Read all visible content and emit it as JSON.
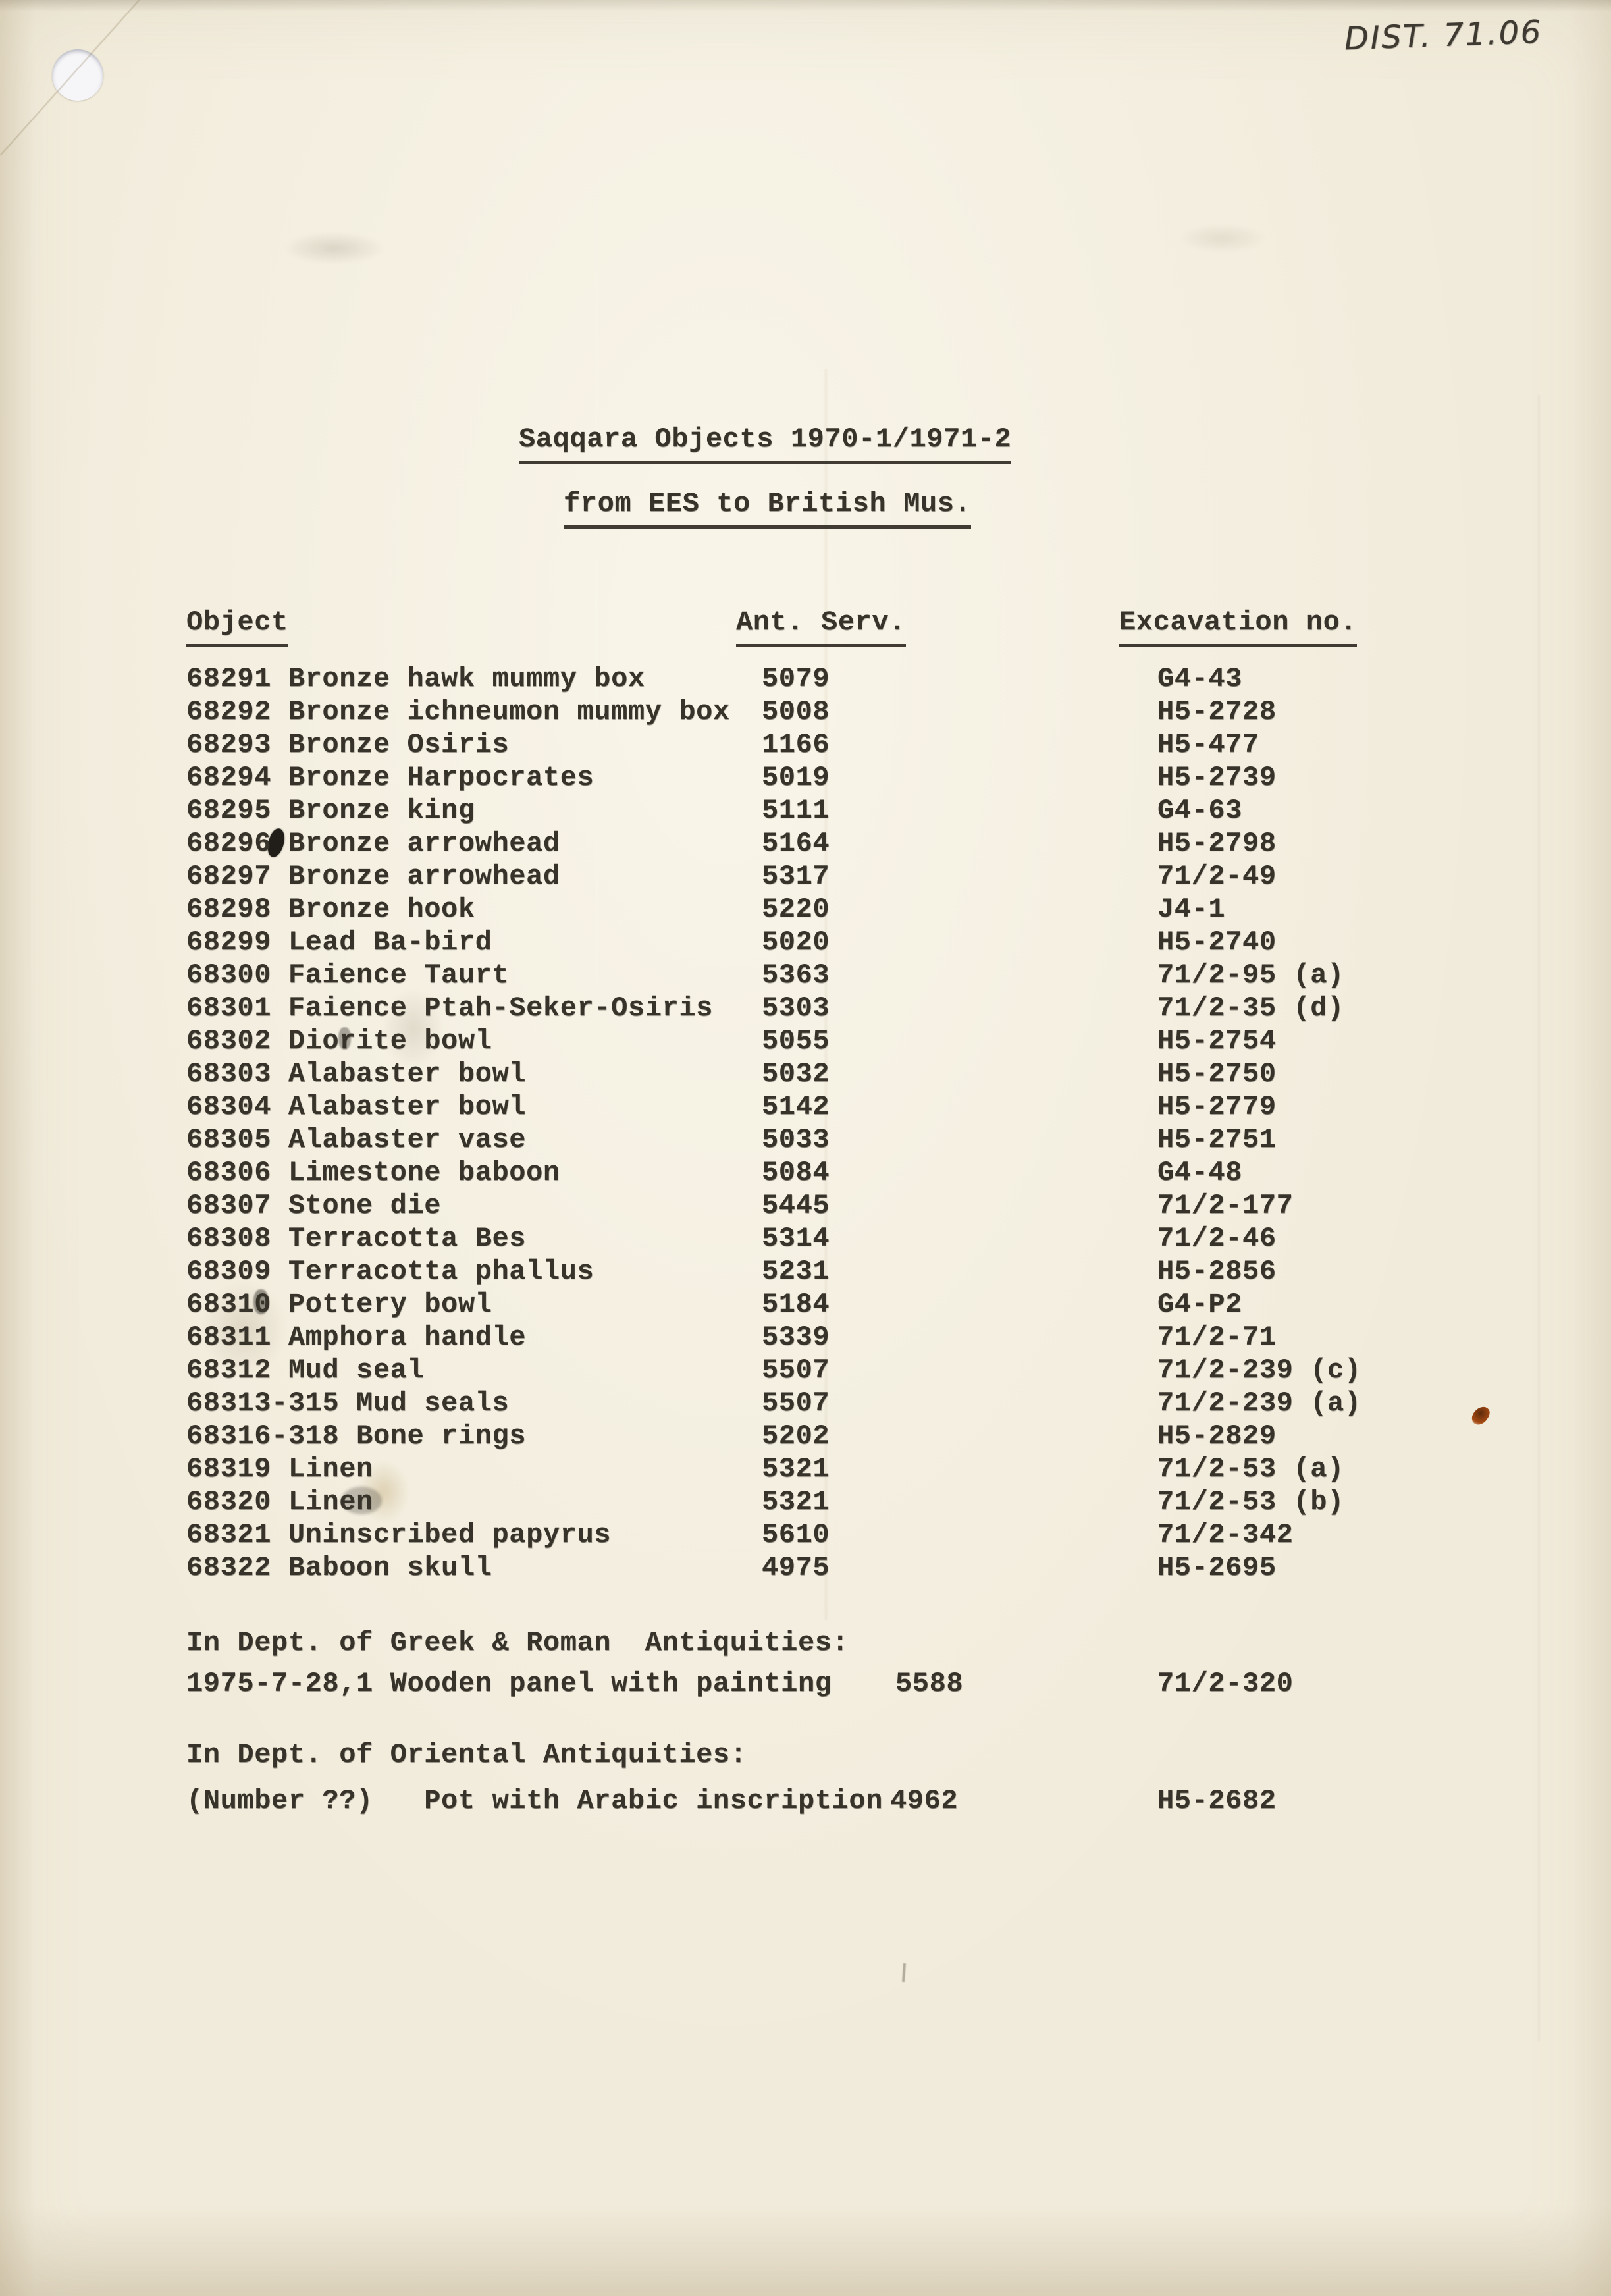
{
  "page": {
    "annotation": "DIST. 71.06"
  },
  "title": {
    "line1": "Saqqara Objects 1970-1/1971-2",
    "line2": "from EES to British Mus."
  },
  "headers": {
    "object": "Object",
    "ant_serv": "Ant. Serv.",
    "excavation": "Excavation no."
  },
  "rows": [
    {
      "object": "68291 Bronze hawk mummy box",
      "serv": "5079",
      "exc": "G4-43"
    },
    {
      "object": "68292 Bronze ichneumon mummy box",
      "serv": "5008",
      "exc": "H5-2728"
    },
    {
      "object": "68293 Bronze Osiris",
      "serv": "1166",
      "exc": "H5-477"
    },
    {
      "object": "68294 Bronze Harpocrates",
      "serv": "5019",
      "exc": "H5-2739"
    },
    {
      "object": "68295 Bronze king",
      "serv": "5111",
      "exc": "G4-63"
    },
    {
      "object": "68296 Bronze arrowhead",
      "serv": "5164",
      "exc": "H5-2798"
    },
    {
      "object": "68297 Bronze arrowhead",
      "serv": "5317",
      "exc": "71/2-49"
    },
    {
      "object": "68298 Bronze hook",
      "serv": "5220",
      "exc": "J4-1"
    },
    {
      "object": "68299 Lead Ba-bird",
      "serv": "5020",
      "exc": "H5-2740"
    },
    {
      "object": "68300 Faience Taurt",
      "serv": "5363",
      "exc": "71/2-95 (a)"
    },
    {
      "object": "68301 Faience Ptah-Seker-Osiris",
      "serv": "5303",
      "exc": "71/2-35 (d)"
    },
    {
      "object": "68302 Diorite bowl",
      "serv": "5055",
      "exc": "H5-2754"
    },
    {
      "object": "68303 Alabaster bowl",
      "serv": "5032",
      "exc": "H5-2750"
    },
    {
      "object": "68304 Alabaster bowl",
      "serv": "5142",
      "exc": "H5-2779"
    },
    {
      "object": "68305 Alabaster vase",
      "serv": "5033",
      "exc": "H5-2751"
    },
    {
      "object": "68306 Limestone baboon",
      "serv": "5084",
      "exc": "G4-48"
    },
    {
      "object": "68307 Stone die",
      "serv": "5445",
      "exc": "71/2-177"
    },
    {
      "object": "68308 Terracotta Bes",
      "serv": "5314",
      "exc": "71/2-46"
    },
    {
      "object": "68309 Terracotta phallus",
      "serv": "5231",
      "exc": "H5-2856"
    },
    {
      "object": "68310 Pottery bowl",
      "serv": "5184",
      "exc": "G4-P2"
    },
    {
      "object": "68311 Amphora handle",
      "serv": "5339",
      "exc": "71/2-71"
    },
    {
      "object": "68312 Mud seal",
      "serv": "5507",
      "exc": "71/2-239 (c)"
    },
    {
      "object": "68313-315 Mud seals",
      "serv": "5507",
      "exc": "71/2-239 (a)"
    },
    {
      "object": "68316-318 Bone rings",
      "serv": "5202",
      "exc": "H5-2829"
    },
    {
      "object": "68319 Linen",
      "serv": "5321",
      "exc": "71/2-53 (a)"
    },
    {
      "object": "68320 Linen",
      "serv": "5321",
      "exc": "71/2-53 (b)"
    },
    {
      "object": "68321 Uninscribed papyrus",
      "serv": "5610",
      "exc": "71/2-342"
    },
    {
      "object": "68322 Baboon skull",
      "serv": "4975",
      "exc": "H5-2695"
    }
  ],
  "sections": [
    {
      "heading": "In Dept. of Greek & Roman  Antiquities:",
      "entry_object": "1975-7-28,1 Wooden panel with painting",
      "entry_serv": "5588",
      "entry_exc": "71/2-320"
    },
    {
      "heading": "In Dept. of Oriental Antiquities:",
      "entry_object": "(Number ??)   Pot with Arabic inscription",
      "entry_serv": "4962",
      "entry_exc": "H5-2682"
    }
  ],
  "colors": {
    "paper": "#f1ebdb",
    "ink": "#38332a"
  }
}
